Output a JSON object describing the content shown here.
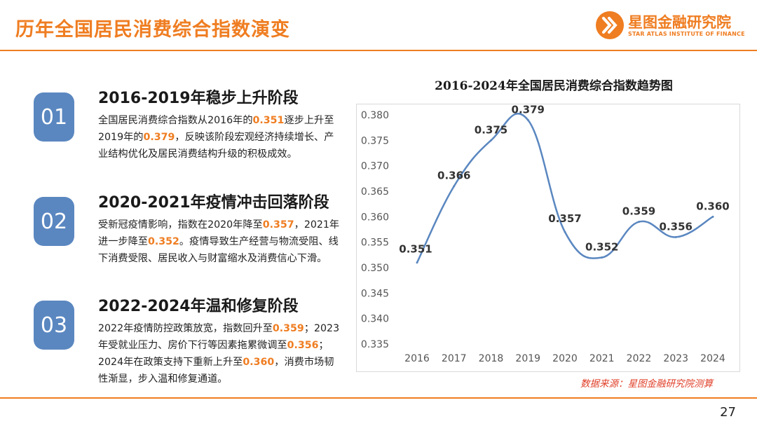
{
  "header": {
    "title": "历年全国居民消费综合指数演变"
  },
  "logo": {
    "name_cn": "星图金融研究院",
    "name_en": "STAR ATLAS INSTITUTE OF FINANCE"
  },
  "stages": [
    {
      "number": "01",
      "title": "2016-2019年稳步上升阶段",
      "desc": [
        {
          "t": "全国居民消费综合指数从2016年的"
        },
        {
          "t": "0.351",
          "hl": true
        },
        {
          "t": "逐步上升至2019年的"
        },
        {
          "t": "0.379",
          "hl": true
        },
        {
          "t": "，反映该阶段宏观经济持续增长、产业结构优化及居民消费结构升级的积极成效。"
        }
      ]
    },
    {
      "number": "02",
      "title": "2020-2021年疫情冲击回落阶段",
      "desc": [
        {
          "t": "受新冠疫情影响，指数在2020年降至"
        },
        {
          "t": "0.357",
          "hl": true
        },
        {
          "t": "，2021年进一步降至"
        },
        {
          "t": "0.352",
          "hl": true
        },
        {
          "t": "。疫情导致生产经营与物流受阻、线下消费受限、居民收入与财富缩水及消费信心下滑。"
        }
      ]
    },
    {
      "number": "03",
      "title": "2022-2024年温和修复阶段",
      "desc": [
        {
          "t": "2022年疫情防控政策放宽，指数回升至"
        },
        {
          "t": "0.359",
          "hl": true
        },
        {
          "t": "；2023年受就业压力、房价下行等因素拖累微调至"
        },
        {
          "t": "0.356",
          "hl": true
        },
        {
          "t": "；2024年在政策支持下重新上升至"
        },
        {
          "t": "0.360",
          "hl": true
        },
        {
          "t": "，消费市场韧性渐显，步入温和修复通道。"
        }
      ]
    }
  ],
  "chart_data": {
    "type": "line",
    "title": "2016-2024年全国居民消费综合指数趋势图",
    "x": [
      "2016",
      "2017",
      "2018",
      "2019",
      "2020",
      "2021",
      "2022",
      "2023",
      "2024"
    ],
    "values": [
      0.351,
      0.366,
      0.375,
      0.379,
      0.357,
      0.352,
      0.359,
      0.356,
      0.36
    ],
    "labels": [
      "0.351",
      "0.366",
      "0.375",
      "0.379",
      "0.357",
      "0.352",
      "0.359",
      "0.356",
      "0.360"
    ],
    "ylim": [
      0.335,
      0.38
    ],
    "yticks": [
      "0.335",
      "0.340",
      "0.345",
      "0.350",
      "0.355",
      "0.360",
      "0.365",
      "0.370",
      "0.375",
      "0.380"
    ],
    "xlabel": "",
    "ylabel": "",
    "line_color": "#5a87c0",
    "grid": false,
    "legend": "none"
  },
  "source": "数据来源：星图金融研究院测算",
  "page_number": "27",
  "colors": {
    "accent": "#ef7d21",
    "badge": "#5a87c0",
    "source": "#e0402a"
  }
}
